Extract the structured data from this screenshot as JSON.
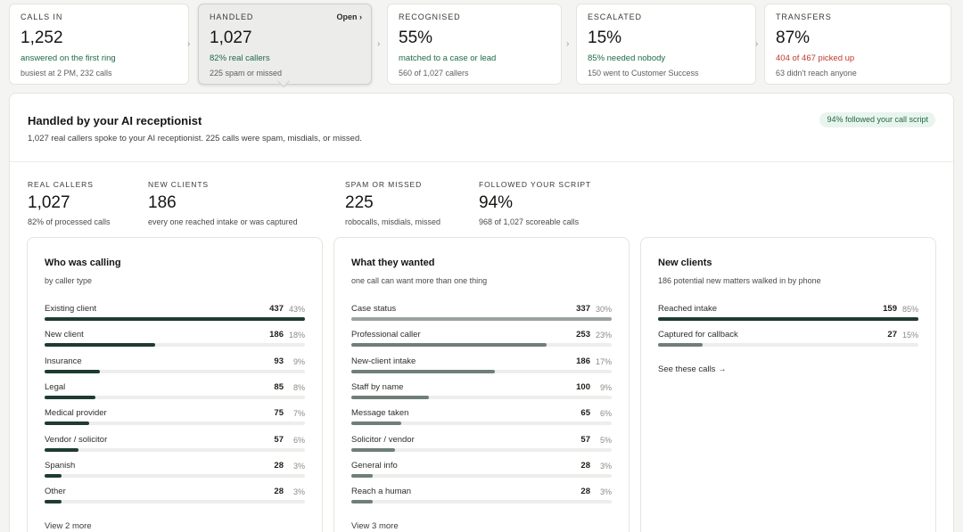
{
  "kpis": [
    {
      "label": "CALLS IN",
      "value": "1,252",
      "sub": "answered on the first ring",
      "sub_tone": "green",
      "note": "busiest at 2 PM, 232 calls",
      "active": false
    },
    {
      "label": "HANDLED",
      "value": "1,027",
      "sub": "82% real callers",
      "sub_tone": "green",
      "note": "225 spam or missed",
      "active": true,
      "open_label": "Open ›"
    },
    {
      "label": "RECOGNISED",
      "value": "55%",
      "sub": "matched to a case or lead",
      "sub_tone": "green",
      "note": "560 of 1,027 callers",
      "active": false
    },
    {
      "label": "ESCALATED",
      "value": "15%",
      "sub": "85% needed nobody",
      "sub_tone": "green",
      "note": "150 went to Customer Success",
      "active": false
    },
    {
      "label": "TRANSFERS",
      "value": "87%",
      "sub": "404 of 467 picked up",
      "sub_tone": "red",
      "note": "63 didn't reach anyone",
      "active": false
    }
  ],
  "separator_glyph": "›",
  "panel": {
    "title": "Handled by your AI receptionist",
    "description": "1,027 real callers spoke to your AI receptionist. 225 calls were spam, misdials, or missed.",
    "badge": "94% followed your call script"
  },
  "stats": [
    {
      "label": "REAL CALLERS",
      "value": "1,027",
      "note": "82% of processed calls"
    },
    {
      "label": "NEW CLIENTS",
      "value": "186",
      "note": "every one reached intake or was captured"
    },
    {
      "label": "SPAM OR MISSED",
      "value": "225",
      "note": "robocalls, misdials, missed"
    },
    {
      "label": "FOLLOWED YOUR SCRIPT",
      "value": "94%",
      "note": "968 of 1,027 scoreable calls"
    }
  ],
  "colors": {
    "bar_dark": "#1f3b33",
    "bar_mid": "#6f7f78",
    "bar_light": "#9ba39f",
    "track": "#ededeb"
  },
  "who_calling": {
    "title": "Who was calling",
    "description": "by caller type",
    "max": 437,
    "rows": [
      {
        "label": "Existing client",
        "count": "437",
        "pct": "43%",
        "value": 437
      },
      {
        "label": "New client",
        "count": "186",
        "pct": "18%",
        "value": 186
      },
      {
        "label": "Insurance",
        "count": "93",
        "pct": "9%",
        "value": 93
      },
      {
        "label": "Legal",
        "count": "85",
        "pct": "8%",
        "value": 85
      },
      {
        "label": "Medical provider",
        "count": "75",
        "pct": "7%",
        "value": 75
      },
      {
        "label": "Vendor / solicitor",
        "count": "57",
        "pct": "6%",
        "value": 57
      },
      {
        "label": "Spanish",
        "count": "28",
        "pct": "3%",
        "value": 28
      },
      {
        "label": "Other",
        "count": "28",
        "pct": "3%",
        "value": 28
      }
    ],
    "more_label": "View 2 more"
  },
  "what_wanted": {
    "title": "What they wanted",
    "description": "one call can want more than one thing",
    "max": 337,
    "rows": [
      {
        "label": "Case status",
        "count": "337",
        "pct": "30%",
        "value": 337
      },
      {
        "label": "Professional caller",
        "count": "253",
        "pct": "23%",
        "value": 253
      },
      {
        "label": "New-client intake",
        "count": "186",
        "pct": "17%",
        "value": 186
      },
      {
        "label": "Staff by name",
        "count": "100",
        "pct": "9%",
        "value": 100
      },
      {
        "label": "Message taken",
        "count": "65",
        "pct": "6%",
        "value": 65
      },
      {
        "label": "Solicitor / vendor",
        "count": "57",
        "pct": "5%",
        "value": 57
      },
      {
        "label": "General info",
        "count": "28",
        "pct": "3%",
        "value": 28
      },
      {
        "label": "Reach a human",
        "count": "28",
        "pct": "3%",
        "value": 28
      }
    ],
    "more_label": "View 3 more"
  },
  "new_clients": {
    "title": "New clients",
    "description": "186 potential new matters walked in by phone",
    "max": 159,
    "rows": [
      {
        "label": "Reached intake",
        "count": "159",
        "pct": "85%",
        "value": 159
      },
      {
        "label": "Captured for callback",
        "count": "27",
        "pct": "15%",
        "value": 27
      }
    ],
    "see_label": "See these calls →"
  }
}
